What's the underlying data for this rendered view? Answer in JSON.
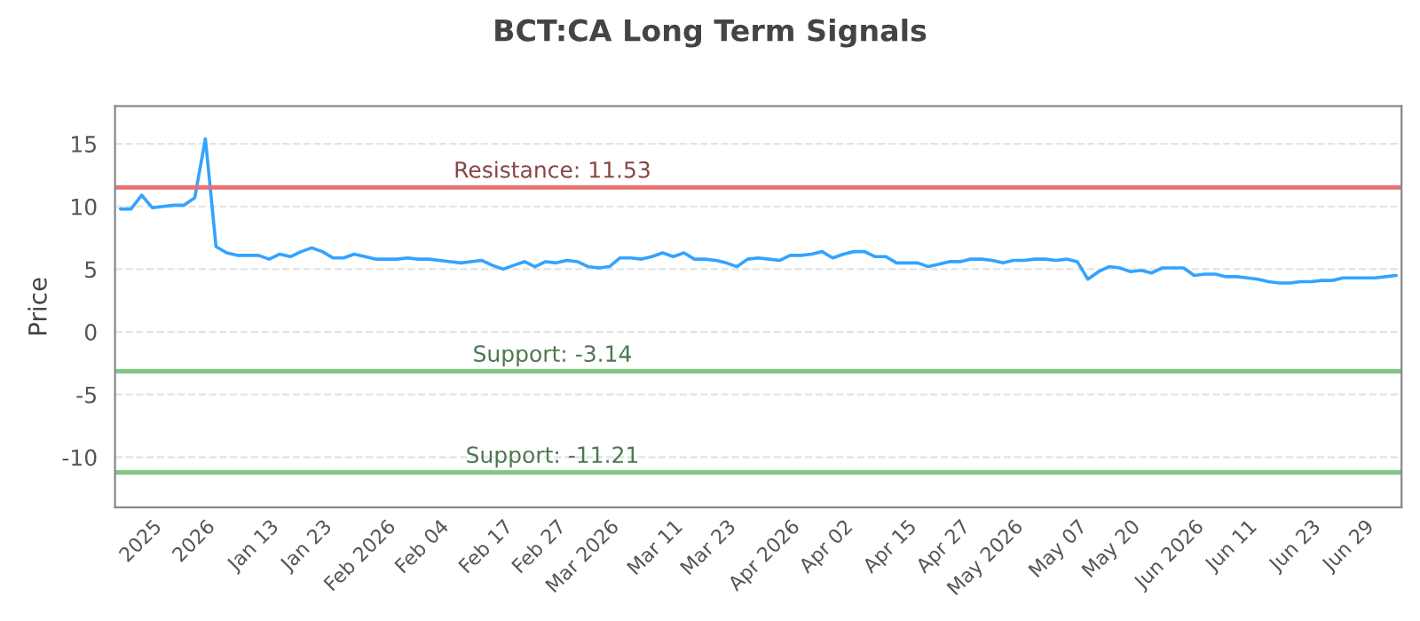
{
  "chart_data": {
    "type": "line",
    "title": "BCT:CA Long Term Signals",
    "ylabel": "Price",
    "categories": [
      null,
      null,
      null,
      "2025",
      null,
      null,
      null,
      null,
      "2026",
      null,
      null,
      null,
      null,
      null,
      "Jan 13",
      null,
      null,
      null,
      null,
      "Jan 23",
      null,
      null,
      null,
      null,
      null,
      "Feb 2026",
      null,
      null,
      null,
      null,
      "Feb 04",
      null,
      null,
      null,
      null,
      null,
      "Feb 17",
      null,
      null,
      null,
      null,
      "Feb 27",
      null,
      null,
      null,
      null,
      "Mar 2026",
      null,
      null,
      null,
      null,
      null,
      "Mar 11",
      null,
      null,
      null,
      null,
      "Mar 23",
      null,
      null,
      null,
      null,
      null,
      "Apr 2026",
      null,
      null,
      null,
      null,
      "Apr 02",
      null,
      null,
      null,
      null,
      null,
      "Apr 15",
      null,
      null,
      null,
      null,
      "Apr 27",
      null,
      null,
      null,
      null,
      "May 2026",
      null,
      null,
      null,
      null,
      null,
      "May 07",
      null,
      null,
      null,
      null,
      "May 20",
      null,
      null,
      null,
      null,
      null,
      "Jun 2026",
      null,
      null,
      null,
      null,
      "Jun 11",
      null,
      null,
      null,
      null,
      null,
      "Jun 23",
      null,
      null,
      null,
      null,
      "Jun 29",
      null,
      null,
      null
    ],
    "series": [
      {
        "color": "#33a3ff",
        "values": [
          9.8,
          9.8,
          10.9,
          9.9,
          10.0,
          10.1,
          10.1,
          10.7,
          15.4,
          6.8,
          6.3,
          6.1,
          6.1,
          6.1,
          5.8,
          6.2,
          6.0,
          6.4,
          6.7,
          6.4,
          5.9,
          5.9,
          6.2,
          6.0,
          5.8,
          5.8,
          5.8,
          5.9,
          5.8,
          5.8,
          5.7,
          5.6,
          5.5,
          5.6,
          5.7,
          5.3,
          5.0,
          5.3,
          5.6,
          5.2,
          5.6,
          5.5,
          5.7,
          5.6,
          5.2,
          5.1,
          5.2,
          5.9,
          5.9,
          5.8,
          6.0,
          6.3,
          6.0,
          6.3,
          5.8,
          5.8,
          5.7,
          5.5,
          5.2,
          5.8,
          5.9,
          5.8,
          5.7,
          6.1,
          6.1,
          6.2,
          6.4,
          5.9,
          6.2,
          6.4,
          6.4,
          6.0,
          6.0,
          5.5,
          5.5,
          5.5,
          5.2,
          5.4,
          5.6,
          5.6,
          5.8,
          5.8,
          5.7,
          5.5,
          5.7,
          5.7,
          5.8,
          5.8,
          5.7,
          5.8,
          5.6,
          4.2,
          4.8,
          5.2,
          5.1,
          4.8,
          4.9,
          4.7,
          5.1,
          5.1,
          5.1,
          4.5,
          4.6,
          4.6,
          4.4,
          4.4,
          4.3,
          4.2,
          4.0,
          3.9,
          3.9,
          4.0,
          4.0,
          4.1,
          4.1,
          4.3,
          4.3,
          4.3,
          4.3,
          4.4,
          4.5
        ]
      }
    ],
    "ylim": [
      -14,
      18
    ],
    "yticks": [
      -10,
      -5,
      0,
      5,
      10,
      15
    ],
    "grid": "y",
    "marker": "none",
    "line_style": "solid",
    "ref_lines": [
      {
        "axis": "y",
        "value": 11.53,
        "label": "Resistance: 11.53",
        "color": "#e57373"
      },
      {
        "axis": "y",
        "value": -3.14,
        "label": "Support: -3.14",
        "color": "#81c784"
      },
      {
        "axis": "y",
        "value": -11.21,
        "label": "Support: -11.21",
        "color": "#81c784"
      }
    ]
  }
}
